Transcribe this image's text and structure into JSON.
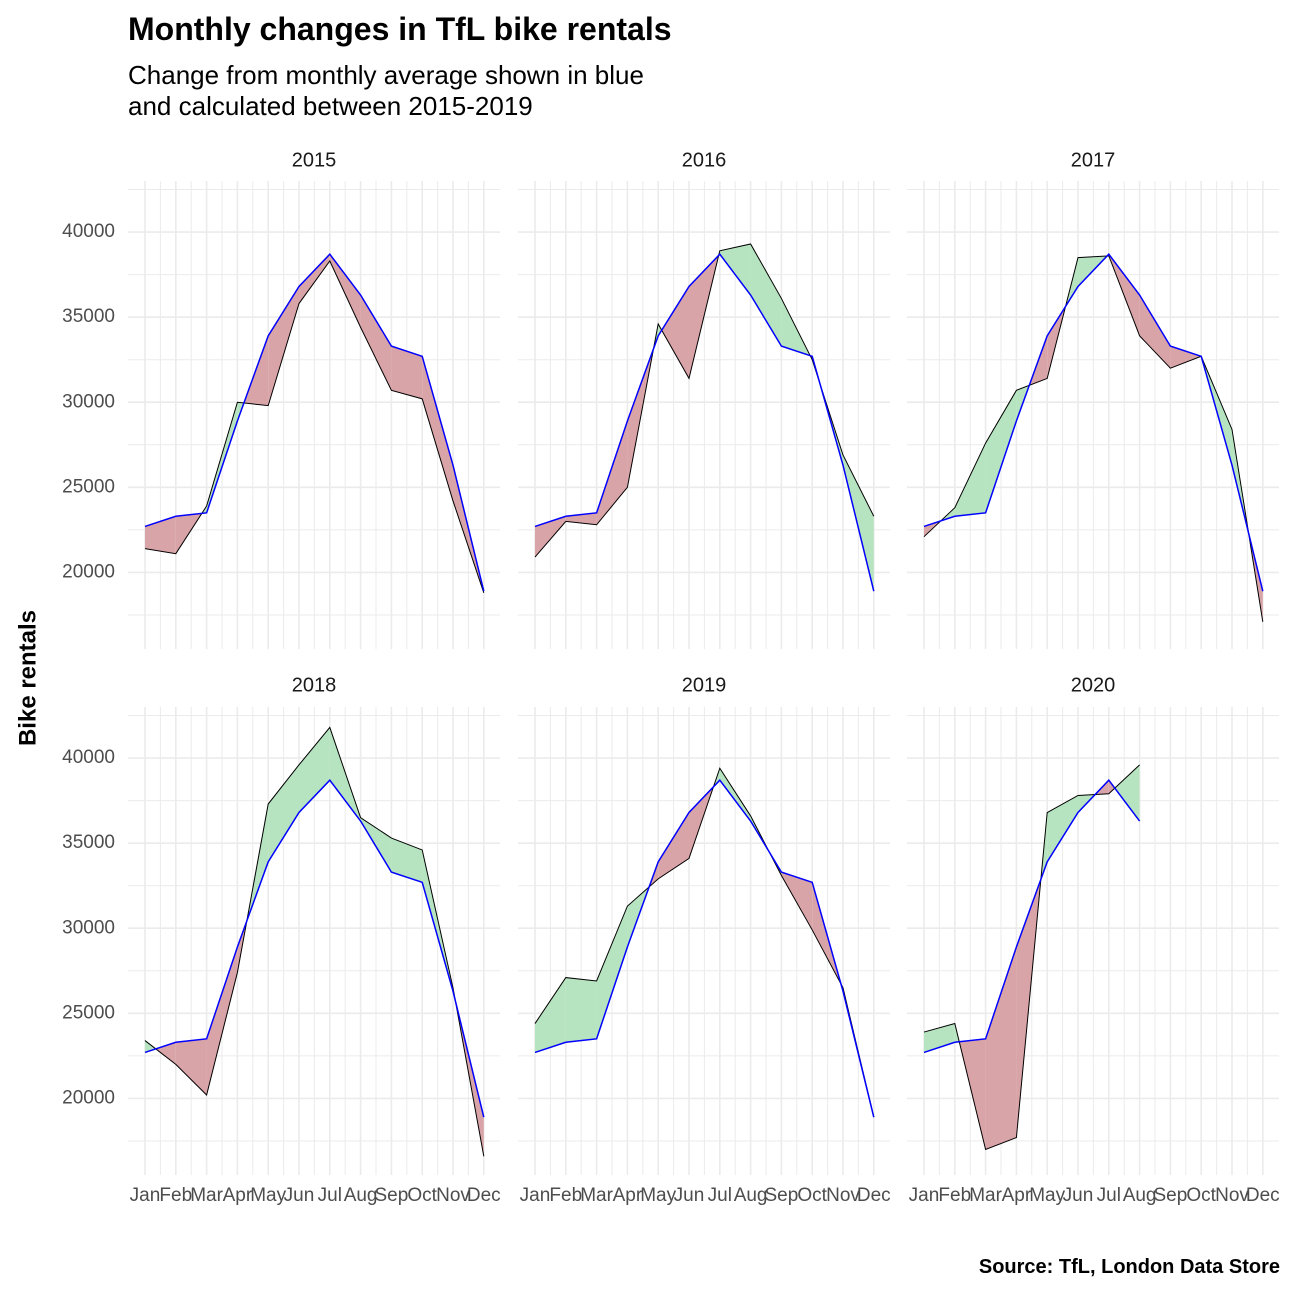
{
  "title": "Monthly changes in TfL bike rentals",
  "subtitle_line1": "Change from monthly average shown in blue",
  "subtitle_line2": "and calculated between 2015-2019",
  "caption": "Source: TfL, London Data Store",
  "colors": {
    "average_line": "#0000ff",
    "actual_line": "#000000",
    "above_fill": "#b7e4c0",
    "below_fill": "#d9a4a8",
    "grid": "#ebebeb"
  },
  "chart_data": {
    "type": "area",
    "facet_by": "year",
    "ylabel": "Bike rentals",
    "xlabel": "",
    "ylim": [
      15500,
      43000
    ],
    "yticks": [
      20000,
      25000,
      30000,
      35000,
      40000
    ],
    "months": [
      "Jan",
      "Feb",
      "Mar",
      "Apr",
      "May",
      "Jun",
      "Jul",
      "Aug",
      "Sep",
      "Oct",
      "Nov",
      "Dec"
    ],
    "average": [
      22700,
      23300,
      23500,
      28900,
      33900,
      36800,
      38700,
      36300,
      33300,
      32700,
      26300,
      18900
    ],
    "panels": [
      {
        "year": "2015",
        "actual": [
          21400,
          21100,
          23900,
          30000,
          29800,
          35800,
          38300,
          34400,
          30700,
          30200,
          24200,
          18800
        ]
      },
      {
        "year": "2016",
        "actual": [
          20900,
          23000,
          22800,
          25000,
          34600,
          31400,
          38900,
          39300,
          36100,
          32500,
          26900,
          23300
        ]
      },
      {
        "year": "2017",
        "actual": [
          22100,
          23800,
          27600,
          30700,
          31400,
          38500,
          38600,
          33900,
          32000,
          32700,
          28400,
          17100
        ]
      },
      {
        "year": "2018",
        "actual": [
          23400,
          22000,
          20200,
          27400,
          37300,
          39600,
          41800,
          36500,
          35300,
          34600,
          26500,
          16600
        ]
      },
      {
        "year": "2019",
        "actual": [
          24400,
          27100,
          26900,
          31300,
          32900,
          34100,
          39400,
          36600,
          33100,
          29900,
          26500,
          18900
        ]
      },
      {
        "year": "2020",
        "actual": [
          23900,
          24400,
          17000,
          17700,
          36800,
          37800,
          37900,
          39600
        ]
      }
    ]
  }
}
